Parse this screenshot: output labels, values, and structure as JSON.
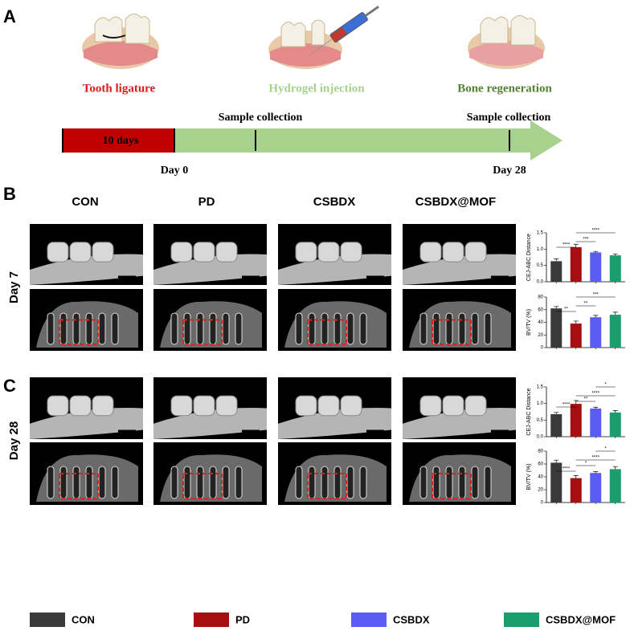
{
  "panel_a": {
    "label": "A",
    "steps": [
      "Tooth ligature",
      "Hydrogel injection",
      "Bone regeneration"
    ],
    "duration": "10 days",
    "collections": [
      "Sample collection",
      "Sample collection"
    ],
    "days": [
      "Day 0",
      "Day 28"
    ]
  },
  "panel_b": {
    "label": "B",
    "columns": [
      "CON",
      "PD",
      "CSBDX",
      "CSBDX@MOF"
    ],
    "row_label": "Day 7",
    "charts": [
      {
        "type": "bar",
        "ylabel": "CEJ-ABC Distance",
        "ylim": [
          0,
          1.5
        ],
        "yticks": [
          {
            "value": 0,
            "label": "0.0"
          },
          0.5,
          {
            "value": 1,
            "label": "1.0"
          },
          1.5
        ],
        "values": [
          0.63,
          1.06,
          0.9,
          0.81
        ],
        "errors": [
          0.07,
          0.09,
          0.03,
          0.04
        ],
        "significance": [
          "****",
          "***",
          "****"
        ]
      },
      {
        "type": "bar",
        "ylabel": "BV/TV (%)",
        "ylim": [
          0,
          80
        ],
        "yticks": [
          0,
          20,
          40,
          60,
          80
        ],
        "values": [
          62,
          38,
          48,
          52
        ],
        "errors": [
          3,
          4,
          3,
          4
        ],
        "significance": [
          "**",
          "**",
          "***"
        ]
      }
    ]
  },
  "panel_c": {
    "label": "C",
    "row_label": "Day 28",
    "charts": [
      {
        "type": "bar",
        "ylabel": "CEJ-ABC Distance",
        "ylim": [
          0,
          1.5
        ],
        "yticks": [
          {
            "value": 0,
            "label": "0.0"
          },
          0.5,
          {
            "value": 1,
            "label": "1.0"
          },
          1.5
        ],
        "values": [
          0.68,
          0.99,
          0.85,
          0.73
        ],
        "errors": [
          0.05,
          0.1,
          0.04,
          0.06
        ],
        "significance": [
          "****",
          "**",
          "****",
          "*"
        ]
      },
      {
        "type": "bar",
        "ylabel": "BV/TV (%)",
        "ylim": [
          0,
          80
        ],
        "yticks": [
          0,
          20,
          40,
          60,
          80
        ],
        "values": [
          62,
          38,
          46,
          52
        ],
        "errors": [
          4,
          4,
          2,
          4
        ],
        "significance": [
          "****",
          "*",
          "****",
          "*"
        ]
      }
    ]
  },
  "legend": [
    {
      "name": "CON",
      "color": "#3a3a3a"
    },
    {
      "name": "PD",
      "color": "#a50f0f"
    },
    {
      "name": "CSBDX",
      "color": "#5b5bf5"
    },
    {
      "name": "CSBDX@MOF",
      "color": "#1a9e6e"
    }
  ]
}
